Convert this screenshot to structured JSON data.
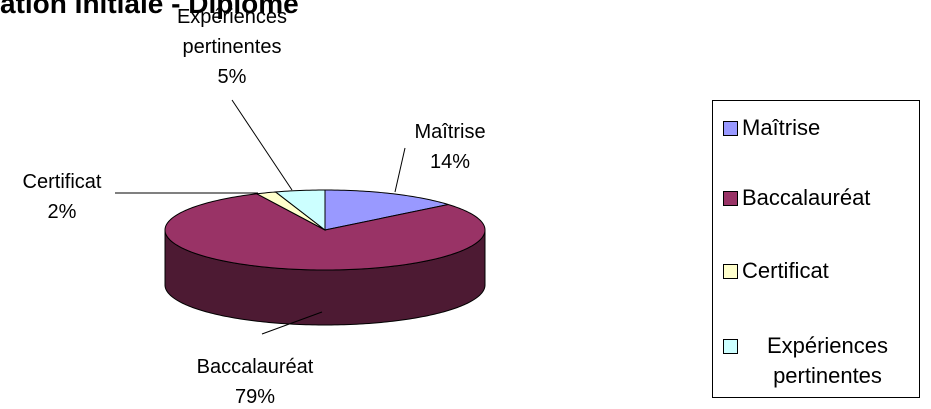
{
  "chart_data": {
    "type": "pie",
    "three_d": true,
    "title": "ation Initiale - Diplôme",
    "categories": [
      "Maîtrise",
      "Baccalauréat",
      "Certificat",
      "Expériences pertinentes"
    ],
    "values": [
      14,
      79,
      2,
      5
    ],
    "value_labels": [
      "14%",
      "79%",
      "2%",
      "5%"
    ],
    "colors": [
      "#9999ff",
      "#993366",
      "#ffffcc",
      "#ccffff"
    ],
    "legend": "right"
  }
}
